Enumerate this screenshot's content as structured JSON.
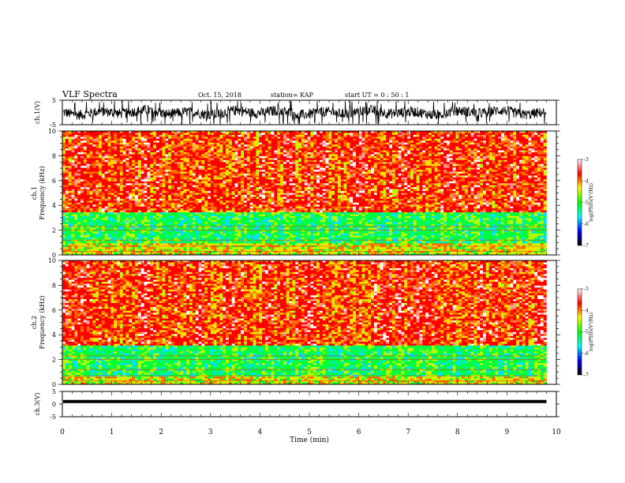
{
  "header": {
    "title": "VLF Spectra",
    "date": "Oct. 15, 2018",
    "station": "station= KAP",
    "start": "start  UT =  0 : 50 : 1"
  },
  "chart_data": [
    {
      "type": "line",
      "panel": "waveform-ch1",
      "ylabel": "ch.1(V)",
      "ylim": [
        -5,
        5
      ],
      "xlim": [
        0,
        10
      ],
      "y_ticks": [
        "5",
        "-5"
      ],
      "color": "#000000"
    },
    {
      "type": "heatmap",
      "panel": "spectrogram-ch1",
      "ylabel": "ch.1\nFrequency (kHz)",
      "ylabel_lines": [
        "ch.1",
        "Frequency  (kHz)"
      ],
      "ylim": [
        0,
        10
      ],
      "xlim": [
        0,
        9.8
      ],
      "y_ticks": [
        "0",
        "2",
        "4",
        "6",
        "8",
        "10"
      ],
      "bands_khz": {
        "high_power": [
          3.5,
          10
        ],
        "low_power": [
          1.0,
          3.5
        ],
        "mid_power": [
          0,
          1.0
        ]
      },
      "colorbar": {
        "label": "log(PSD)(V²/Hz)",
        "range": [
          -7,
          -3
        ],
        "ticks": [
          "-3",
          "-4",
          "-5",
          "-6",
          "-7"
        ]
      }
    },
    {
      "type": "heatmap",
      "panel": "spectrogram-ch2",
      "ylabel": "ch.2\nFrequency (kHz)",
      "ylabel_lines": [
        "ch.2",
        "Frequency  (kHz)"
      ],
      "ylim": [
        0,
        10
      ],
      "xlim": [
        0,
        9.8
      ],
      "y_ticks": [
        "0",
        "2",
        "4",
        "6",
        "8",
        "10"
      ],
      "bands_khz": {
        "high_power": [
          3.2,
          10
        ],
        "low_power": [
          0.6,
          3.2
        ],
        "mid_power": [
          0,
          0.6
        ]
      },
      "colorbar": {
        "label": "log(PSD)(V²/Hz)",
        "range": [
          -7,
          -3
        ],
        "ticks": [
          "-3",
          "-4",
          "-5",
          "-6",
          "-7"
        ]
      }
    },
    {
      "type": "line",
      "panel": "waveform-ch3",
      "ylabel": "ch.3(V)",
      "ylim": [
        -5,
        5
      ],
      "xlim": [
        0,
        10
      ],
      "y_ticks": [
        "5",
        "0",
        "-5"
      ],
      "constant_value": 1,
      "color": "#000000"
    }
  ],
  "x_axis": {
    "label": "Time  (min)",
    "ticks": [
      "0",
      "1",
      "2",
      "3",
      "4",
      "5",
      "6",
      "7",
      "8",
      "9",
      "10"
    ]
  },
  "colormap": [
    "#000000",
    "#0000ff",
    "#00ffff",
    "#00ff00",
    "#ffff00",
    "#ff0000",
    "#ffffff"
  ]
}
